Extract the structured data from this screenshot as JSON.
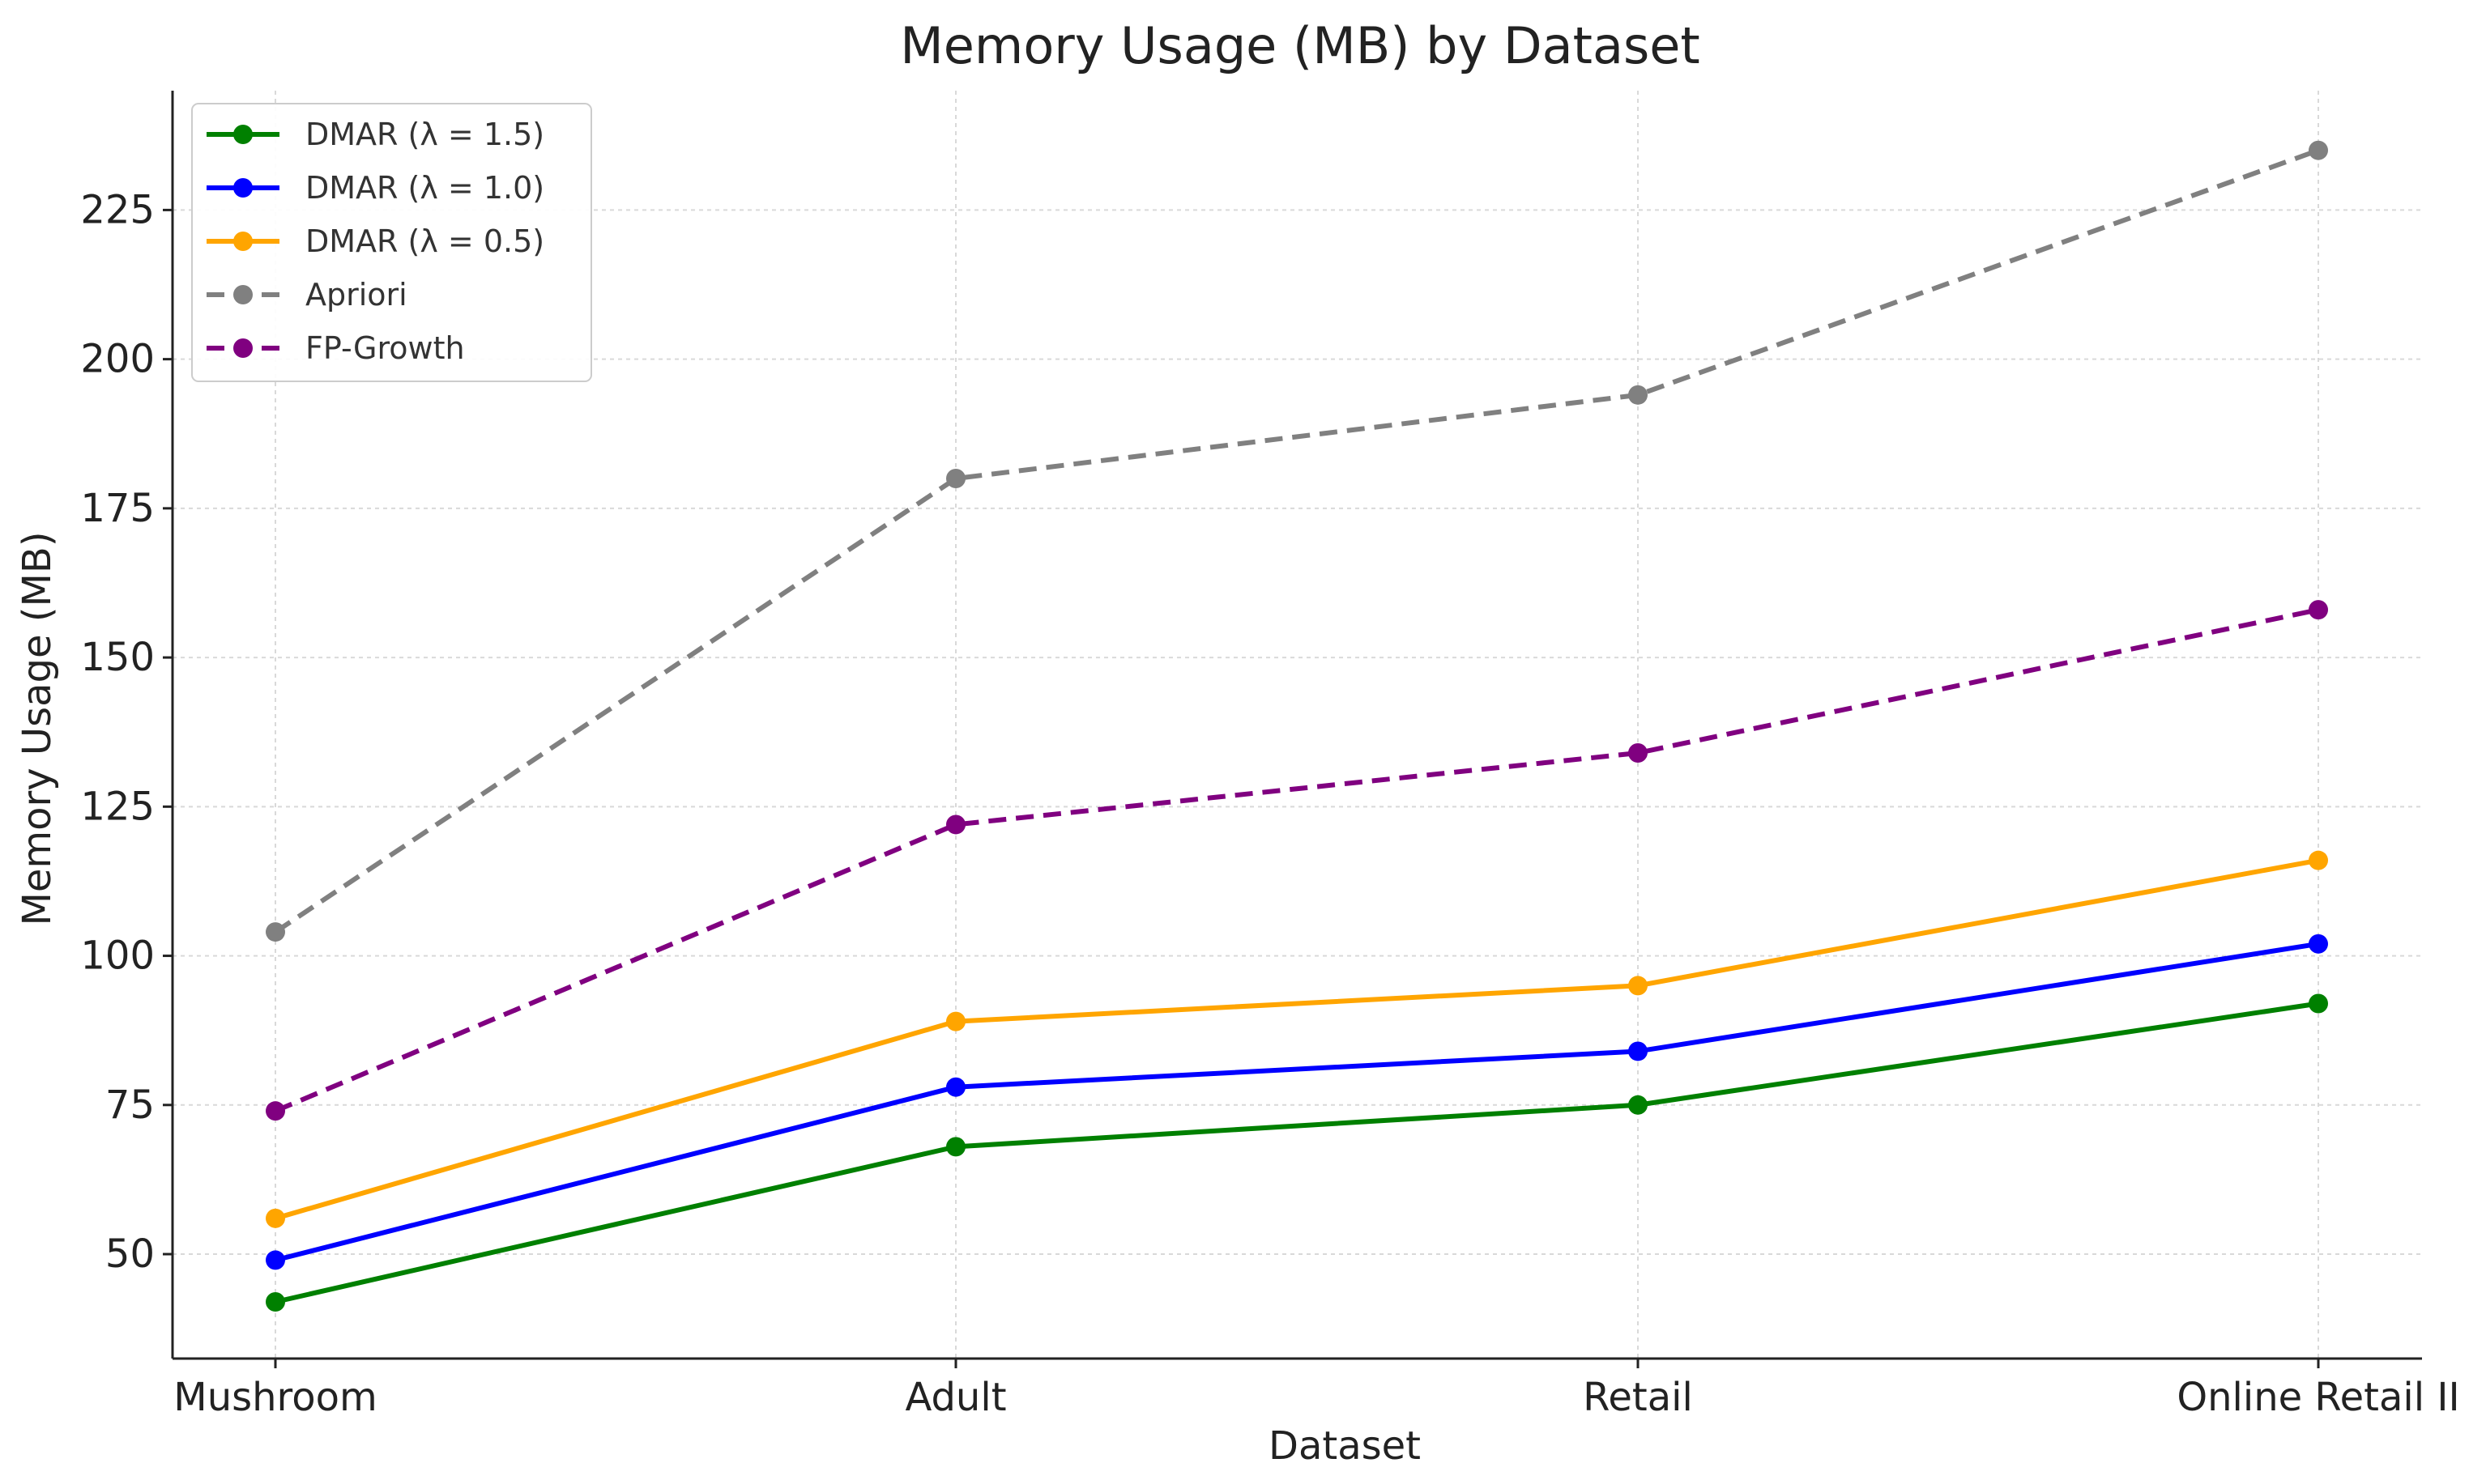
{
  "chart_data": {
    "type": "line",
    "title": "Memory Usage (MB) by Dataset",
    "xlabel": "Dataset",
    "ylabel": "Memory Usage (MB)",
    "categories": [
      "Mushroom",
      "Adult",
      "Retail",
      "Online Retail II"
    ],
    "ylim": [
      32.5,
      245
    ],
    "yticks": [
      50,
      75,
      100,
      125,
      150,
      175,
      200,
      225
    ],
    "grid": true,
    "legend_position": "top-left",
    "series": [
      {
        "name": "DMAR (λ = 1.5)",
        "values": [
          42,
          68,
          75,
          92
        ],
        "color": "#008000",
        "dashed": false
      },
      {
        "name": "DMAR (λ = 1.0)",
        "values": [
          49,
          78,
          84,
          102
        ],
        "color": "#0000ff",
        "dashed": false
      },
      {
        "name": "DMAR (λ = 0.5)",
        "values": [
          56,
          89,
          95,
          116
        ],
        "color": "#ffa500",
        "dashed": false
      },
      {
        "name": "Apriori",
        "values": [
          104,
          180,
          194,
          235
        ],
        "color": "#808080",
        "dashed": true
      },
      {
        "name": "FP-Growth",
        "values": [
          74,
          122,
          134,
          158
        ],
        "color": "#800080",
        "dashed": true
      }
    ]
  }
}
